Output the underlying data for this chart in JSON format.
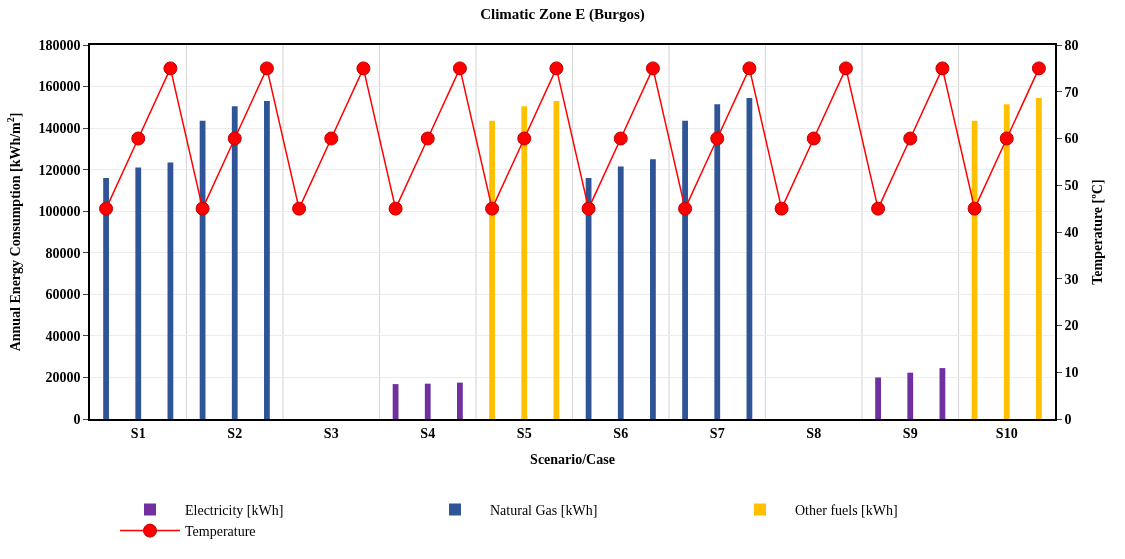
{
  "chart_data": {
    "type": "bar",
    "title": "Climatic Zone E (Burgos)",
    "xlabel": "Scenario/Case",
    "ylabel": "Annual Energy Consumption [kWh/m$^{2}$]",
    "y2label": "Temperature [ºC]",
    "categories": [
      null,
      "S1",
      null,
      null,
      "S2",
      null,
      null,
      "S3",
      null,
      null,
      "S4",
      null,
      null,
      "S5",
      null,
      null,
      "S6",
      null,
      null,
      "S7",
      null,
      null,
      "S8",
      null,
      null,
      "S9",
      null,
      null,
      "S10",
      null
    ],
    "series": [
      {
        "name": "Electricity [kWh]",
        "color": "#7030a0",
        "values": [
          null,
          null,
          null,
          null,
          null,
          null,
          null,
          null,
          null,
          16800,
          17000,
          17500,
          null,
          null,
          null,
          null,
          null,
          null,
          null,
          null,
          null,
          null,
          null,
          null,
          20000,
          22300,
          24500,
          null,
          null,
          null
        ]
      },
      {
        "name": "Natural Gas [kWh]",
        "color": "#2f5597",
        "values": [
          116000,
          121000,
          123500,
          143500,
          150500,
          153000,
          null,
          null,
          null,
          null,
          null,
          null,
          null,
          null,
          null,
          116000,
          121500,
          125000,
          143500,
          151500,
          154500,
          null,
          null,
          null,
          null,
          null,
          null,
          null,
          null,
          null
        ]
      },
      {
        "name": "Other fuels [kWh]",
        "color": "#ffc000",
        "values": [
          null,
          null,
          null,
          null,
          null,
          null,
          null,
          null,
          null,
          null,
          null,
          null,
          143500,
          150500,
          153000,
          null,
          null,
          null,
          null,
          null,
          null,
          null,
          null,
          null,
          null,
          null,
          null,
          143500,
          151500,
          154500
        ]
      },
      {
        "name": "Temperature",
        "type": "line",
        "axis": "y2",
        "color": "#ff0000",
        "marker": "circle",
        "values": [
          45,
          60,
          75,
          45,
          60,
          75,
          45,
          60,
          75,
          45,
          60,
          75,
          45,
          60,
          75,
          45,
          60,
          75,
          45,
          60,
          75,
          45,
          60,
          75,
          45,
          60,
          75,
          45,
          60,
          75
        ]
      }
    ],
    "ylim": [
      0,
      180000
    ],
    "yticks": [
      0,
      20000,
      40000,
      60000,
      80000,
      100000,
      120000,
      140000,
      160000,
      180000
    ],
    "y2lim": [
      0,
      80
    ],
    "y2ticks": [
      0,
      10,
      20,
      30,
      40,
      50,
      60,
      70,
      80
    ],
    "grid": true,
    "legend": "bottom"
  }
}
